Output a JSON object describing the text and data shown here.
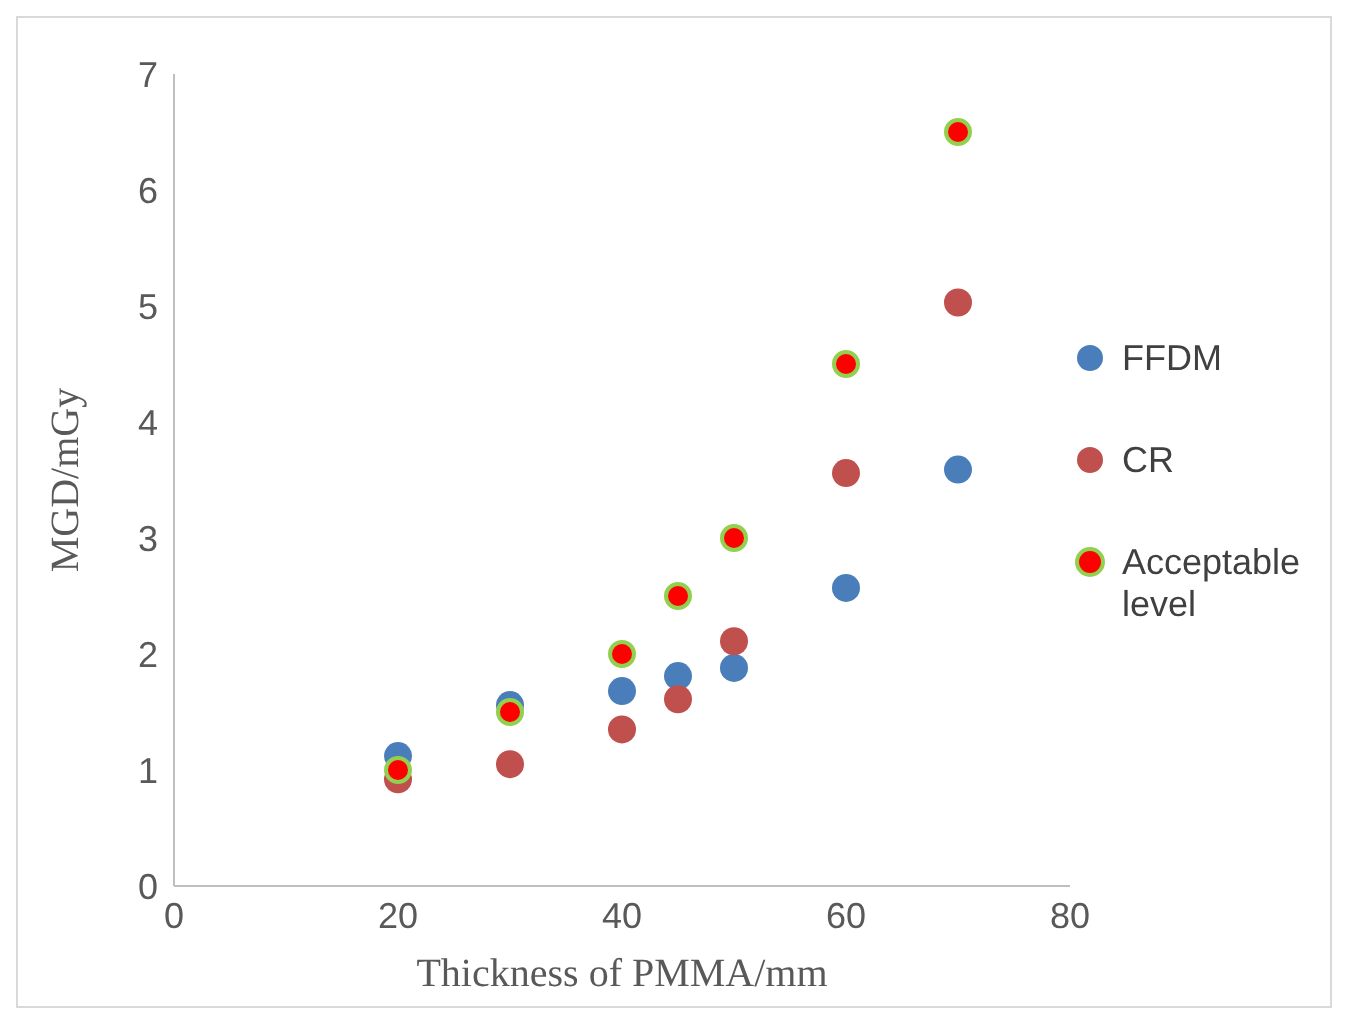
{
  "chart_data": {
    "type": "scatter",
    "xlabel": "Thickness of PMMA/mm",
    "ylabel": "MGD/mGy",
    "x": [
      20,
      30,
      40,
      45,
      50,
      60,
      70
    ],
    "series": [
      {
        "name": "FFDM",
        "color": "#4a7ebb",
        "values": [
          1.12,
          1.56,
          1.68,
          1.81,
          1.88,
          2.57,
          3.59
        ]
      },
      {
        "name": "CR",
        "color": "#c0504d",
        "values": [
          0.92,
          1.05,
          1.35,
          1.61,
          2.11,
          3.56,
          5.03
        ]
      },
      {
        "name": "Acceptable level",
        "color": "#ff0000",
        "values": [
          1,
          1.5,
          2,
          2.5,
          3,
          4.5,
          6.5
        ]
      }
    ],
    "xlim": [
      0,
      80
    ],
    "xticks": [
      0,
      20,
      40,
      60,
      80
    ],
    "ylim": [
      0,
      7
    ],
    "yticks": [
      0,
      1,
      2,
      3,
      4,
      5,
      6,
      7
    ],
    "grid": false,
    "legend": "right",
    "marker": "circle"
  }
}
